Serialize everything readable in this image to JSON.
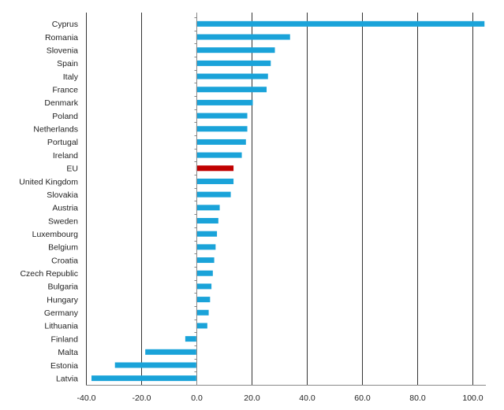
{
  "chart_data": {
    "type": "bar",
    "orientation": "horizontal",
    "title": "",
    "xlabel": "",
    "ylabel": "",
    "xlim": [
      -40,
      105
    ],
    "xticks": [
      -40,
      -20,
      0,
      20,
      40,
      60,
      80,
      100
    ],
    "xtick_labels": [
      "-40.0",
      "-20.0",
      "0.0",
      "20.0",
      "40.0",
      "60.0",
      "80.0",
      "100.0"
    ],
    "grid": true,
    "legend": "none",
    "colors": {
      "default": "#1aa3d9",
      "highlight": "#c00000"
    },
    "highlight_category": "EU",
    "categories": [
      "Cyprus",
      "Romania",
      "Slovenia",
      "Spain",
      "Italy",
      "France",
      "Denmark",
      "Poland",
      "Netherlands",
      "Portugal",
      "Ireland",
      "EU",
      "United Kingdom",
      "Slovakia",
      "Austria",
      "Sweden",
      "Luxembourg",
      "Belgium",
      "Croatia",
      "Czech Republic",
      "Bulgaria",
      "Hungary",
      "Germany",
      "Lithuania",
      "Finland",
      "Malta",
      "Estonia",
      "Latvia"
    ],
    "values": [
      104.5,
      34.0,
      28.5,
      27.0,
      26.0,
      25.5,
      20.5,
      18.5,
      18.5,
      18.0,
      16.5,
      13.5,
      13.5,
      12.5,
      8.5,
      8.0,
      7.5,
      7.0,
      6.5,
      6.0,
      5.5,
      5.0,
      4.5,
      4.0,
      -4.0,
      -18.5,
      -29.5,
      -38.0
    ]
  }
}
